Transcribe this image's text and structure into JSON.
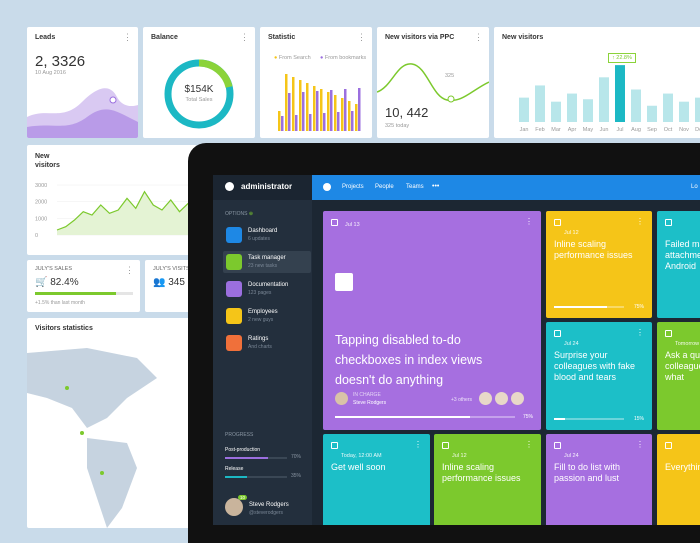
{
  "dashboard": {
    "leads": {
      "title": "Leads",
      "value": "2, 3326",
      "date": "10 Aug 2016"
    },
    "balance": {
      "title": "Balance",
      "value": "$154K",
      "caption": "Total Sales"
    },
    "statistic": {
      "title": "Statistic",
      "legend": [
        "From Search",
        "From bookmarks"
      ]
    },
    "ppc": {
      "title": "New visitors via PPC",
      "marker": "325",
      "value": "10, 442",
      "caption": "325 today"
    },
    "visitors_bars": {
      "title": "New visitors",
      "badge": "22.8%",
      "categories": [
        "Jan",
        "Feb",
        "Mar",
        "Apr",
        "May",
        "Jun",
        "Jul",
        "Aug",
        "Sep",
        "Oct",
        "Nov",
        "Dec"
      ],
      "values": [
        30,
        45,
        25,
        35,
        28,
        55,
        70,
        40,
        20,
        35,
        25,
        30
      ]
    },
    "visitors_line": {
      "title": "New visitors",
      "ylim": [
        0,
        3600
      ],
      "yticks": [
        3000,
        2000,
        1000,
        0
      ],
      "values": [
        300,
        500,
        900,
        1400,
        1200,
        1800,
        1300,
        1500,
        2200,
        1600,
        2600,
        1800,
        1500,
        2100,
        1400,
        1900,
        1200
      ]
    },
    "sales": {
      "label": "JULY'S SALES",
      "value": {
        "value": 82.4,
        "label": "82.4%"
      },
      "note": "+1.5% than last month"
    },
    "visits": {
      "label": "JULY'S VISITS",
      "value": "345"
    },
    "map": {
      "title": "Visitors statistics"
    }
  },
  "app": {
    "brand": "administrator",
    "nav": [
      "Projects",
      "People",
      "Teams",
      "•••",
      "Lo"
    ],
    "options": "OPTIONS",
    "menu": [
      {
        "title": "Dashboard",
        "sub": "6 updates"
      },
      {
        "title": "Task manager",
        "sub": "23 new tasks"
      },
      {
        "title": "Documentation",
        "sub": "123 pages"
      },
      {
        "title": "Employees",
        "sub": "2 new guys"
      },
      {
        "title": "Ratings",
        "sub": "And charts"
      }
    ],
    "progress": {
      "title": "PROGRESS",
      "items": [
        {
          "name": "Post-production",
          "value": {
            "value": 70,
            "label": "70%"
          }
        },
        {
          "name": "Release",
          "value": {
            "value": 35,
            "label": "35%"
          }
        }
      ]
    },
    "user": {
      "name": "Steve Rodgers",
      "handle": "@steverodgers",
      "badge": "10"
    },
    "cards": [
      {
        "date": "Jul 13",
        "title": "Tapping disabled to-do checkboxes in index views doesn't do anything",
        "label": "IN CHARGE",
        "person": "Steve Rodgers",
        "others": "+3 others",
        "progress": {
          "value": 75,
          "label": "75%"
        }
      },
      {
        "date": "Jul 12",
        "title": "Inline scaling performance issues",
        "progress": {
          "value": 75,
          "label": "75%"
        }
      },
      {
        "title": "Failed mail attachment When Android"
      },
      {
        "date": "Jul 24",
        "title": "Surprise your colleagues with fake blood and tears",
        "progress": {
          "value": 15,
          "label": "15%"
        }
      },
      {
        "date": "Tomorrow",
        "title": "Ask a question to colleague know what"
      },
      {
        "date": "Today, 12:00 AM",
        "title": "Get well soon"
      },
      {
        "date": "Jul 12",
        "title": "Inline scaling performance issues"
      },
      {
        "date": "Jul 24",
        "title": "Fill to do list with passion and lust"
      },
      {
        "title": "Everything"
      }
    ]
  }
}
